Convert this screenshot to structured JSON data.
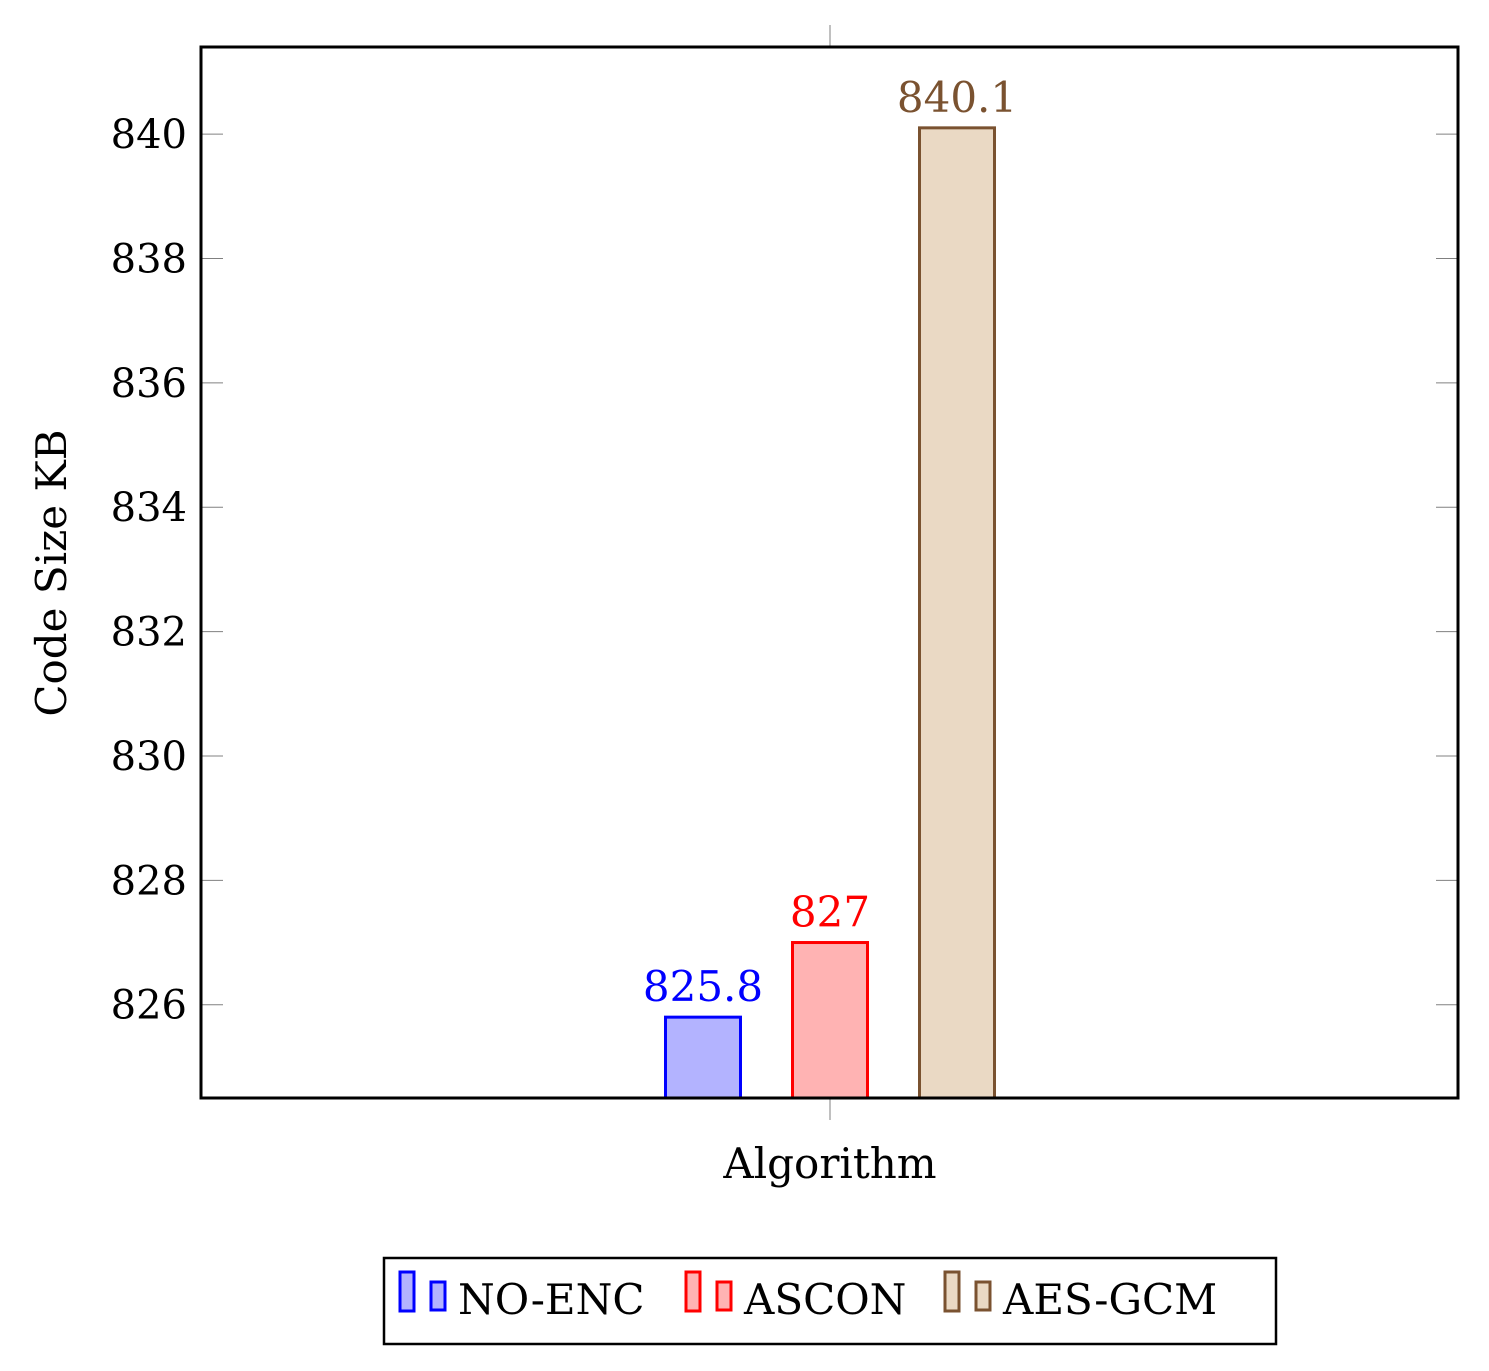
{
  "chart_data": {
    "type": "bar",
    "title": "",
    "xlabel": "Algorithm",
    "ylabel": "Code Size  KB",
    "categories": [
      "Algorithm"
    ],
    "ylim": [
      824.5,
      841.4
    ],
    "yticks": [
      826,
      828,
      830,
      832,
      834,
      836,
      838,
      840
    ],
    "grid": false,
    "legend_position": "bottom",
    "series": [
      {
        "name": "NO-ENC",
        "values": [
          825.8
        ],
        "value_label": "825.8",
        "stroke": "#0000ff",
        "fill": "#b3b3ff"
      },
      {
        "name": "ASCON",
        "values": [
          827
        ],
        "value_label": "827",
        "stroke": "#ff0000",
        "fill": "#ffb3b3"
      },
      {
        "name": "AES-GCM",
        "values": [
          840.1
        ],
        "value_label": "840.1",
        "stroke": "#7a5230",
        "fill": "#ead9c4"
      }
    ]
  }
}
